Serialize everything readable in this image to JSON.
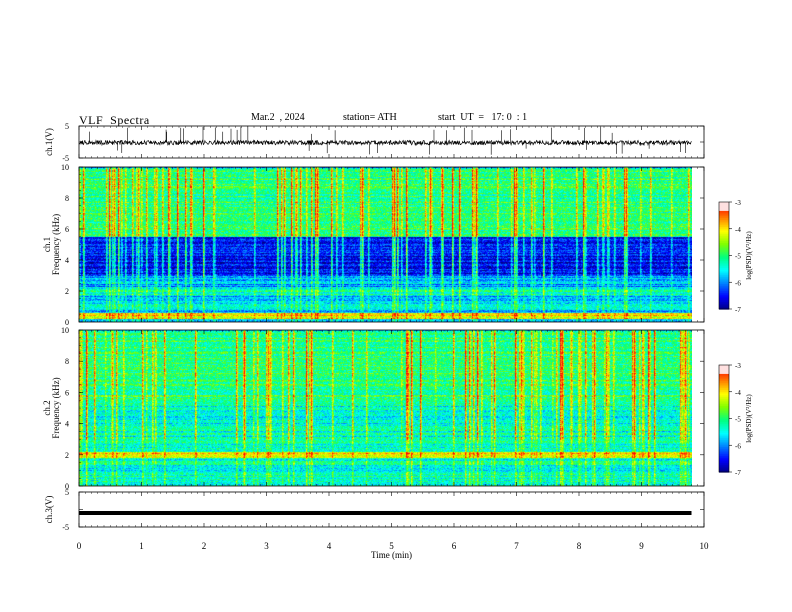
{
  "header": {
    "title": "VLF  Spectra",
    "date": "Mar.2  , 2024",
    "station": "station= ATH",
    "start": "start  UT  =   17: 0  : 1"
  },
  "chart_data": [
    {
      "type": "line",
      "id": "ch1-waveform",
      "ylabel": "ch.1(V)",
      "ylim": [
        -5,
        5
      ],
      "yticks": [
        "5",
        "-5"
      ],
      "x_range_min": [
        0,
        9.8
      ],
      "baseline_v": -0.2,
      "noise_amplitude_v": 0.7,
      "spike_count": 40
    },
    {
      "type": "heatmap",
      "id": "ch1-spectrogram",
      "ylabel": "ch.1\nFrequency (kHz)",
      "ylim_khz": [
        0,
        10
      ],
      "yticks": [
        "0",
        "2",
        "4",
        "6",
        "8",
        "10"
      ],
      "x_range_min": [
        0,
        9.8
      ],
      "colorbar": {
        "label": "log(PSD)(V²/Hz)",
        "range": [
          -7,
          -3
        ],
        "ticks": [
          "-3",
          "-4",
          "-5",
          "-6",
          "-7"
        ]
      },
      "features": {
        "bands_khz": [
          {
            "lo": 0.2,
            "hi": 0.6,
            "level": "high"
          },
          {
            "lo": 0.9,
            "hi": 1.2,
            "level": "medium"
          },
          {
            "lo": 1.8,
            "hi": 2.3,
            "level": "medium"
          },
          {
            "lo": 3.0,
            "hi": 5.5,
            "level": "low"
          },
          {
            "lo": 5.5,
            "hi": 10.0,
            "level": "medium-high"
          }
        ],
        "sferic_count": 90
      }
    },
    {
      "type": "heatmap",
      "id": "ch2-spectrogram",
      "ylabel": "ch.2\nFrequency (kHz)",
      "ylim_khz": [
        0,
        10
      ],
      "yticks": [
        "0",
        "2",
        "4",
        "6",
        "8",
        "10"
      ],
      "x_range_min": [
        0,
        9.8
      ],
      "colorbar": {
        "label": "log(PSD)(V²/Hz)",
        "range": [
          -7,
          -3
        ],
        "ticks": [
          "-3",
          "-4",
          "-5",
          "-6",
          "-7"
        ]
      },
      "features": {
        "bands_khz": [
          {
            "lo": 0.0,
            "hi": 1.8,
            "level": "medium"
          },
          {
            "lo": 1.8,
            "hi": 2.2,
            "level": "high"
          },
          {
            "lo": 2.2,
            "hi": 3.6,
            "level": "medium"
          },
          {
            "lo": 3.6,
            "hi": 5.6,
            "level": "medium"
          },
          {
            "lo": 5.6,
            "hi": 10.0,
            "level": "medium-high"
          }
        ],
        "sferic_count": 90
      }
    },
    {
      "type": "line",
      "id": "ch3-waveform",
      "ylabel": "ch.3(V)",
      "ylim": [
        -5,
        5
      ],
      "yticks": [
        "5",
        "-5"
      ],
      "x_range_min": [
        0,
        9.8
      ],
      "baseline_v": -1.0
    }
  ],
  "x_axis": {
    "label": "Time  (min)",
    "range": [
      0,
      10
    ],
    "ticks": [
      "0",
      "1",
      "2",
      "3",
      "4",
      "5",
      "6",
      "7",
      "8",
      "9",
      "10"
    ]
  },
  "colormap": [
    "#000080",
    "#0000ff",
    "#0080ff",
    "#00ffff",
    "#00ff80",
    "#80ff00",
    "#ffff00",
    "#ff8000",
    "#ff0000",
    "#ffffff"
  ]
}
